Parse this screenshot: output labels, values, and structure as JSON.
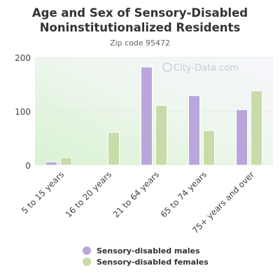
{
  "chart_data": {
    "type": "bar",
    "title_line1": "Age and Sex of Sensory-Disabled",
    "title_line2": "Noninstitutionalized Residents",
    "subtitle": "Zip code 95472",
    "watermark": "City-Data.com",
    "categories": [
      "5 to 15 years",
      "16 to 20 years",
      "21 to 64 years",
      "65 to 74 years",
      "75+ years and over"
    ],
    "series": [
      {
        "name": "Sensory-disabled males",
        "color": "#b9a7db",
        "values": [
          6,
          0,
          182,
          129,
          103
        ]
      },
      {
        "name": "Sensory-disabled females",
        "color": "#c8dba8",
        "values": [
          14,
          61,
          111,
          64,
          138
        ]
      }
    ],
    "yticks": [
      0,
      100,
      200
    ],
    "ylim": [
      0,
      200
    ],
    "grid": true,
    "legend_position": "bottom"
  }
}
